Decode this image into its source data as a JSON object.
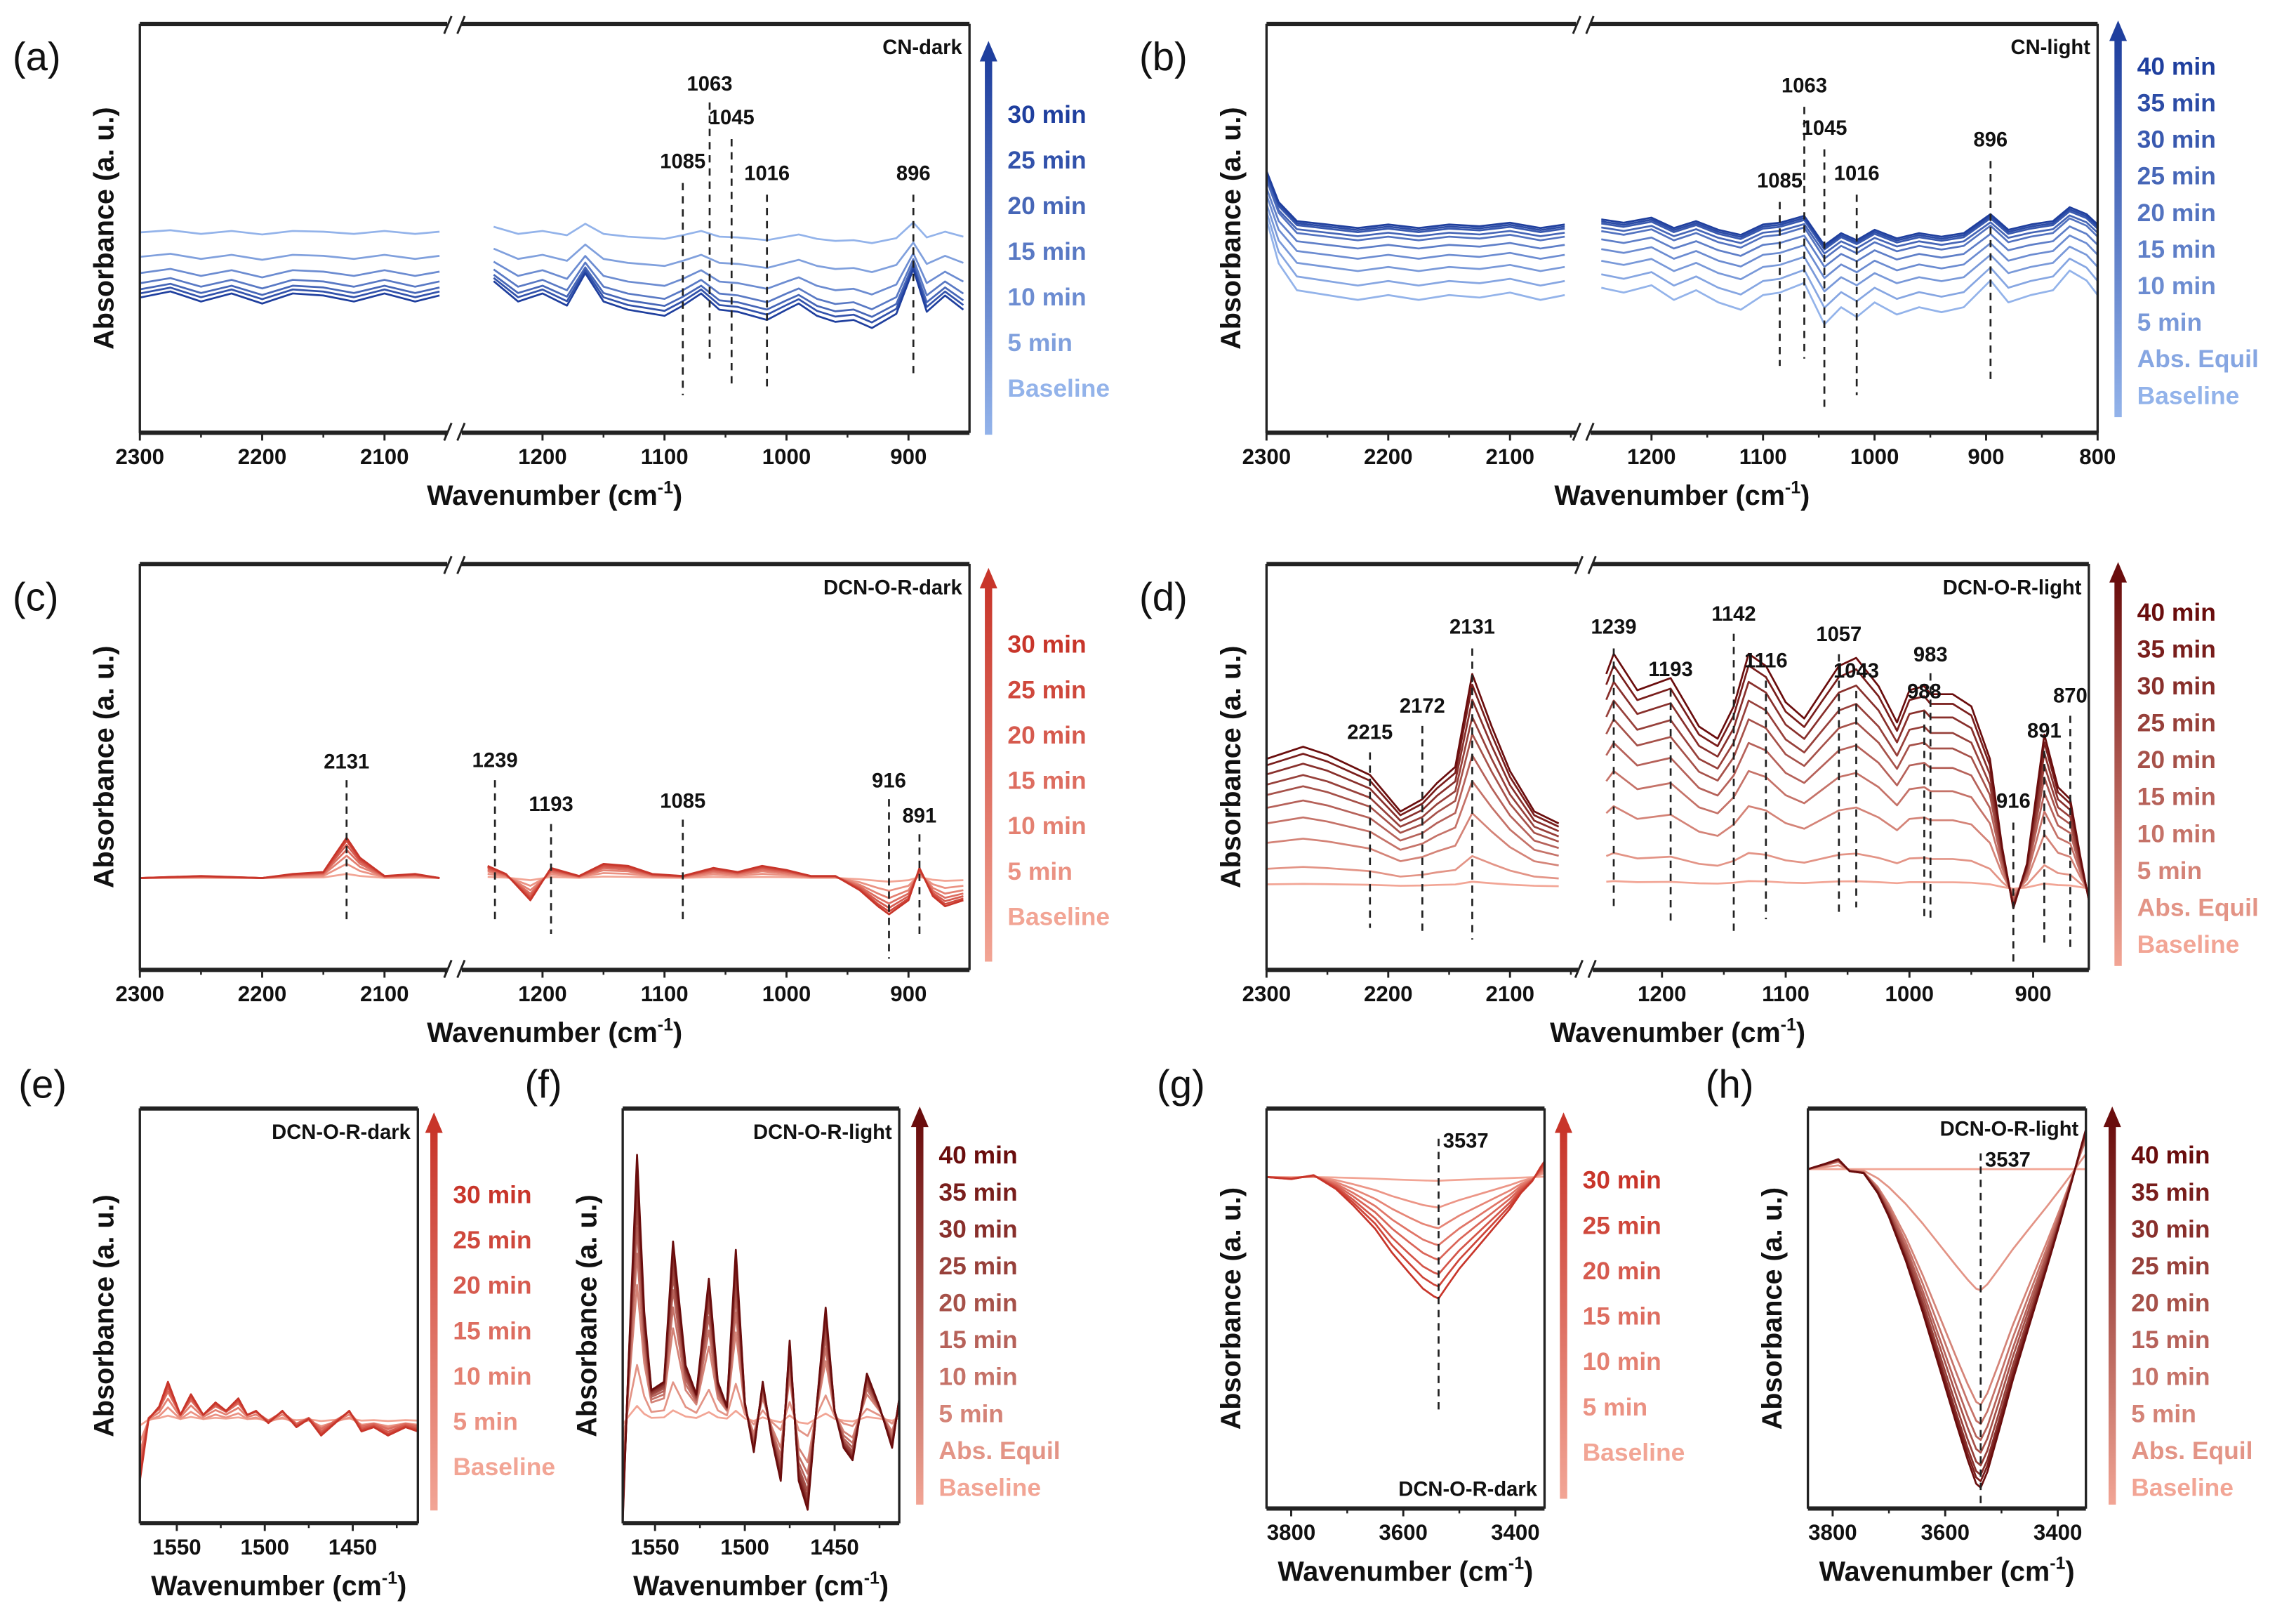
{
  "colors": {
    "blue_light": "#93b3ea",
    "blue_dark": "#1f3f9e",
    "red_light": "#f2a595",
    "red_mid": "#c8352a",
    "red_dark": "#6a0d0d"
  },
  "chart_data": [
    {
      "panel": "(a)",
      "type": "line",
      "title": "CN-dark",
      "xlabel": [
        "Wavenumber (cm",
        "-1",
        ")"
      ],
      "ylabel": "Absorbance (a. u.)",
      "x_axis_break": [
        2050,
        1265
      ],
      "xlim": [
        2300,
        850
      ],
      "ylim": [
        0,
        10
      ],
      "xticks": [
        2300,
        2200,
        2100,
        1200,
        1100,
        1000,
        900
      ],
      "x": [
        2300,
        2275,
        2250,
        2225,
        2200,
        2175,
        2150,
        2125,
        2100,
        2075,
        2055,
        1240,
        1220,
        1200,
        1180,
        1165,
        1150,
        1130,
        1100,
        1085,
        1070,
        1055,
        1040,
        1016,
        1000,
        990,
        975,
        960,
        945,
        930,
        910,
        896,
        885,
        870,
        855
      ],
      "profile": [
        0,
        0.15,
        -0.1,
        0.1,
        -0.15,
        0.1,
        0.05,
        -0.1,
        0.1,
        -0.1,
        0.05,
        0.4,
        -0.1,
        0.1,
        -0.2,
        0.6,
        -0.1,
        -0.3,
        -0.45,
        -0.2,
        0.1,
        -0.3,
        -0.35,
        -0.55,
        -0.3,
        -0.15,
        -0.45,
        -0.6,
        -0.55,
        -0.75,
        -0.4,
        0.7,
        -0.35,
        0.05,
        -0.3
      ],
      "series": [
        {
          "name": "Baseline",
          "offset": 4.9,
          "scale": 0.35
        },
        {
          "name": "5 min",
          "offset": 4.3,
          "scale": 0.5
        },
        {
          "name": "10 min",
          "offset": 3.9,
          "scale": 0.7
        },
        {
          "name": "15 min",
          "offset": 3.65,
          "scale": 0.85
        },
        {
          "name": "20 min",
          "offset": 3.5,
          "scale": 0.9
        },
        {
          "name": "25 min",
          "offset": 3.4,
          "scale": 0.95
        },
        {
          "name": "30 min",
          "offset": 3.3,
          "scale": 1.0
        }
      ],
      "peaks": [
        "1085",
        "1063",
        "1045",
        "1016",
        "896"
      ],
      "legend": [
        "30 min",
        "25 min",
        "20 min",
        "15 min",
        "10 min",
        "5 min",
        "Baseline"
      ]
    },
    {
      "panel": "(b)",
      "type": "line",
      "title": "CN-light",
      "xlabel": [
        "Wavenumber (cm",
        "-1",
        ")"
      ],
      "ylabel": "Absorbance (a. u.)",
      "x_axis_break": [
        2050,
        1250
      ],
      "xlim": [
        2300,
        800
      ],
      "ylim": [
        0,
        10
      ],
      "xticks": [
        2300,
        2200,
        2100,
        1200,
        1100,
        1000,
        900,
        800
      ],
      "x": [
        2300,
        2290,
        2275,
        2250,
        2225,
        2200,
        2175,
        2150,
        2125,
        2100,
        2075,
        2055,
        1245,
        1225,
        1200,
        1180,
        1160,
        1140,
        1120,
        1100,
        1085,
        1063,
        1045,
        1030,
        1016,
        1000,
        980,
        960,
        940,
        920,
        896,
        880,
        860,
        840,
        825,
        810,
        800
      ],
      "profile": [
        1.6,
        0.7,
        0.15,
        0.05,
        -0.05,
        0.05,
        -0.05,
        0.05,
        0,
        0.1,
        -0.05,
        0.05,
        0.2,
        0.1,
        0.25,
        -0.05,
        0.15,
        -0.1,
        -0.25,
        0.05,
        0.1,
        0.3,
        -0.55,
        -0.2,
        -0.4,
        -0.1,
        -0.35,
        -0.2,
        -0.3,
        -0.2,
        0.35,
        -0.1,
        0.05,
        0.15,
        0.55,
        0.35,
        0.05
      ],
      "series": [
        {
          "name": "Baseline",
          "offset": 3.3,
          "scale": 1.2
        },
        {
          "name": "Abs. Equil",
          "offset": 3.65,
          "scale": 1.1
        },
        {
          "name": "5 min",
          "offset": 4.0,
          "scale": 1.0
        },
        {
          "name": "10 min",
          "offset": 4.3,
          "scale": 0.95
        },
        {
          "name": "15 min",
          "offset": 4.55,
          "scale": 0.9
        },
        {
          "name": "20 min",
          "offset": 4.75,
          "scale": 0.9
        },
        {
          "name": "25 min",
          "offset": 4.85,
          "scale": 0.85
        },
        {
          "name": "30 min",
          "offset": 4.95,
          "scale": 0.85
        },
        {
          "name": "35 min",
          "offset": 5.0,
          "scale": 0.85
        },
        {
          "name": "40 min",
          "offset": 5.05,
          "scale": 0.85
        }
      ],
      "peaks": [
        "1085",
        "1063",
        "1045",
        "1016",
        "896"
      ],
      "legend": [
        "40 min",
        "35 min",
        "30 min",
        "25 min",
        "20 min",
        "15 min",
        "10 min",
        "5 min",
        "Abs. Equil",
        "Baseline"
      ]
    },
    {
      "panel": "(c)",
      "type": "line",
      "title": "DCN-O-R-dark",
      "xlabel": [
        "Wavenumber (cm",
        "-1",
        ")"
      ],
      "ylabel": "Absorbance (a. u.)",
      "x_axis_break": [
        2050,
        1265
      ],
      "xlim": [
        2300,
        850
      ],
      "ylim": [
        0,
        10
      ],
      "xticks": [
        2300,
        2200,
        2100,
        1200,
        1100,
        1000,
        900
      ],
      "x": [
        2300,
        2250,
        2200,
        2175,
        2150,
        2140,
        2131,
        2120,
        2100,
        2075,
        2055,
        1245,
        1230,
        1210,
        1193,
        1170,
        1150,
        1130,
        1110,
        1085,
        1060,
        1040,
        1020,
        1000,
        980,
        960,
        940,
        925,
        916,
        900,
        891,
        880,
        870,
        855
      ],
      "profile": [
        0,
        0.05,
        0,
        0.1,
        0.15,
        0.6,
        1.0,
        0.5,
        0.05,
        0.1,
        0,
        0.3,
        0.1,
        -0.55,
        0.25,
        0.05,
        0.35,
        0.3,
        0.1,
        0.05,
        0.25,
        0.15,
        0.3,
        0.2,
        0.05,
        0.05,
        -0.3,
        -0.7,
        -0.9,
        -0.55,
        0.25,
        -0.45,
        -0.7,
        -0.55
      ],
      "series": [
        {
          "name": "Baseline",
          "offset": 2.25,
          "scale": 0.1
        },
        {
          "name": "5 min",
          "offset": 2.25,
          "scale": 0.35
        },
        {
          "name": "10 min",
          "offset": 2.25,
          "scale": 0.55
        },
        {
          "name": "15 min",
          "offset": 2.25,
          "scale": 0.7
        },
        {
          "name": "20 min",
          "offset": 2.25,
          "scale": 0.82
        },
        {
          "name": "25 min",
          "offset": 2.25,
          "scale": 0.92
        },
        {
          "name": "30 min",
          "offset": 2.25,
          "scale": 1.0
        }
      ],
      "peaks": [
        "2131",
        "1239",
        "1193",
        "1085",
        "916",
        "891"
      ],
      "legend": [
        "30 min",
        "25 min",
        "20 min",
        "15 min",
        "10 min",
        "5 min",
        "Baseline"
      ]
    },
    {
      "panel": "(d)",
      "type": "line",
      "title": "DCN-O-R-light",
      "xlabel": [
        "Wavenumber (cm",
        "-1",
        ")"
      ],
      "ylabel": "Absorbance (a. u.)",
      "x_axis_break": [
        2050,
        1250
      ],
      "xlim": [
        2300,
        855
      ],
      "ylim": [
        0,
        10
      ],
      "xticks": [
        2300,
        2200,
        2100,
        1200,
        1100,
        1000,
        900
      ],
      "x": [
        2300,
        2270,
        2250,
        2215,
        2190,
        2172,
        2160,
        2145,
        2131,
        2115,
        2100,
        2080,
        2060,
        1245,
        1239,
        1220,
        1193,
        1170,
        1155,
        1142,
        1130,
        1116,
        1100,
        1085,
        1070,
        1057,
        1043,
        1025,
        1010,
        1000,
        988,
        983,
        965,
        950,
        935,
        925,
        916,
        905,
        891,
        880,
        870,
        862,
        855
      ],
      "profile": [
        3.2,
        3.5,
        3.3,
        2.8,
        1.9,
        2.2,
        2.6,
        3.0,
        5.3,
        4.0,
        2.9,
        1.9,
        1.6,
        5.3,
        5.8,
        4.9,
        5.2,
        4.0,
        3.7,
        4.5,
        5.8,
        5.5,
        4.6,
        4.2,
        4.9,
        5.5,
        5.7,
        5.0,
        4.1,
        4.9,
        5.0,
        4.8,
        4.8,
        4.5,
        3.2,
        1.0,
        -0.5,
        0.6,
        3.8,
        2.5,
        2.2,
        0.8,
        -0.3
      ],
      "series": [
        {
          "name": "Baseline",
          "offset": 2.0,
          "scale": 0.03
        },
        {
          "name": "Abs. Equil",
          "offset": 2.0,
          "scale": 0.15
        },
        {
          "name": "5 min",
          "offset": 2.0,
          "scale": 0.35
        },
        {
          "name": "10 min",
          "offset": 2.0,
          "scale": 0.5
        },
        {
          "name": "15 min",
          "offset": 2.0,
          "scale": 0.62
        },
        {
          "name": "20 min",
          "offset": 2.0,
          "scale": 0.72
        },
        {
          "name": "25 min",
          "offset": 2.0,
          "scale": 0.8
        },
        {
          "name": "30 min",
          "offset": 2.0,
          "scale": 0.88
        },
        {
          "name": "35 min",
          "offset": 2.0,
          "scale": 0.95
        },
        {
          "name": "40 min",
          "offset": 2.0,
          "scale": 1.0
        }
      ],
      "peaks": [
        "2215",
        "2172",
        "2131",
        "1239",
        "1193",
        "1142",
        "1116",
        "1057",
        "1043",
        "988",
        "983",
        "916",
        "891",
        "870"
      ],
      "legend": [
        "40 min",
        "35 min",
        "30 min",
        "25 min",
        "20 min",
        "15 min",
        "10 min",
        "5 min",
        "Abs. Equil",
        "Baseline"
      ]
    },
    {
      "panel": "(e)",
      "type": "line",
      "title": "DCN-O-R-dark",
      "xlabel": [
        "Wavenumber (cm",
        "-1",
        ")"
      ],
      "ylabel": "Absorbance (a. u.)",
      "xlim": [
        1571,
        1413
      ],
      "ylim": [
        0,
        10
      ],
      "xticks": [
        1550,
        1500,
        1450
      ],
      "x": [
        1571,
        1566,
        1560,
        1555,
        1548,
        1542,
        1535,
        1528,
        1522,
        1515,
        1510,
        1505,
        1498,
        1490,
        1482,
        1475,
        1468,
        1460,
        1452,
        1445,
        1438,
        1430,
        1420,
        1413
      ],
      "profile": [
        -1.6,
        -0.1,
        0.2,
        0.8,
        0.0,
        0.5,
        0.0,
        0.3,
        0.1,
        0.4,
        0.0,
        0.1,
        -0.2,
        0.1,
        -0.3,
        -0.1,
        -0.5,
        -0.2,
        0.1,
        -0.4,
        -0.3,
        -0.5,
        -0.3,
        -0.4
      ],
      "series": [
        {
          "name": "Baseline",
          "offset": 2.5,
          "scale": 0.1
        },
        {
          "name": "5 min",
          "offset": 2.5,
          "scale": 0.35
        },
        {
          "name": "10 min",
          "offset": 2.55,
          "scale": 0.55
        },
        {
          "name": "15 min",
          "offset": 2.6,
          "scale": 0.7
        },
        {
          "name": "20 min",
          "offset": 2.6,
          "scale": 0.82
        },
        {
          "name": "25 min",
          "offset": 2.6,
          "scale": 0.92
        },
        {
          "name": "30 min",
          "offset": 2.6,
          "scale": 1.0
        }
      ],
      "peaks": [],
      "legend": [
        "30 min",
        "25 min",
        "20 min",
        "15 min",
        "10 min",
        "5 min",
        "Baseline"
      ]
    },
    {
      "panel": "(f)",
      "type": "line",
      "title": "DCN-O-R-light",
      "xlabel": [
        "Wavenumber (cm",
        "-1",
        ")"
      ],
      "ylabel": "Absorbance (a. u.)",
      "xlim": [
        1568,
        1414
      ],
      "ylim": [
        0,
        10
      ],
      "xticks": [
        1550,
        1500,
        1450
      ],
      "x": [
        1568,
        1565,
        1560,
        1556,
        1552,
        1545,
        1540,
        1533,
        1527,
        1520,
        1515,
        1510,
        1505,
        1500,
        1495,
        1490,
        1485,
        1480,
        1475,
        1470,
        1465,
        1460,
        1455,
        1450,
        1445,
        1440,
        1432,
        1425,
        1418,
        1414
      ],
      "profile": [
        -2.6,
        1.0,
        6.3,
        2.5,
        0.6,
        0.8,
        4.2,
        1.2,
        0.5,
        3.3,
        0.8,
        0.2,
        4.0,
        0.3,
        -0.9,
        0.8,
        -0.6,
        -1.6,
        1.8,
        -1.6,
        -2.3,
        0.2,
        2.6,
        0.1,
        -0.8,
        -1.1,
        1.0,
        0.2,
        -0.8,
        0.4
      ],
      "series": [
        {
          "name": "Baseline",
          "offset": 2.5,
          "scale": 0.05
        },
        {
          "name": "Abs. Equil",
          "offset": 2.55,
          "scale": 0.2
        },
        {
          "name": "5 min",
          "offset": 2.6,
          "scale": 0.5
        },
        {
          "name": "10 min",
          "offset": 2.6,
          "scale": 0.62
        },
        {
          "name": "15 min",
          "offset": 2.6,
          "scale": 0.72
        },
        {
          "name": "20 min",
          "offset": 2.6,
          "scale": 0.8
        },
        {
          "name": "25 min",
          "offset": 2.6,
          "scale": 0.86
        },
        {
          "name": "30 min",
          "offset": 2.6,
          "scale": 0.92
        },
        {
          "name": "35 min",
          "offset": 2.6,
          "scale": 0.96
        },
        {
          "name": "40 min",
          "offset": 2.6,
          "scale": 1.0
        }
      ],
      "peaks": [],
      "legend": [
        "40 min",
        "35 min",
        "30 min",
        "25 min",
        "20 min",
        "15 min",
        "10 min",
        "5 min",
        "Abs. Equil",
        "Baseline"
      ]
    },
    {
      "panel": "(g)",
      "type": "line",
      "title": "DCN-O-R-dark",
      "xlabel": [
        "Wavenumber (cm",
        "-1",
        ")"
      ],
      "ylabel": "Absorbance (a. u.)",
      "xlim": [
        3844,
        3348
      ],
      "ylim": [
        0,
        10
      ],
      "xticks": [
        3800,
        3600,
        3400
      ],
      "x": [
        3844,
        3800,
        3760,
        3720,
        3690,
        3650,
        3620,
        3590,
        3565,
        3545,
        3537,
        3520,
        3500,
        3470,
        3440,
        3410,
        3390,
        3370,
        3355,
        3348
      ],
      "profile": [
        0,
        -0.05,
        0.05,
        -0.3,
        -0.7,
        -1.3,
        -1.9,
        -2.4,
        -2.8,
        -3.0,
        -3.05,
        -2.7,
        -2.3,
        -1.8,
        -1.3,
        -0.8,
        -0.4,
        -0.1,
        0.25,
        0.4
      ],
      "series": [
        {
          "name": "Baseline",
          "offset": 8.3,
          "scale": 0.03
        },
        {
          "name": "5 min",
          "offset": 8.3,
          "scale": 0.25
        },
        {
          "name": "10 min",
          "offset": 8.3,
          "scale": 0.42
        },
        {
          "name": "15 min",
          "offset": 8.3,
          "scale": 0.56
        },
        {
          "name": "20 min",
          "offset": 8.3,
          "scale": 0.68
        },
        {
          "name": "25 min",
          "offset": 8.3,
          "scale": 0.8
        },
        {
          "name": "30 min",
          "offset": 8.3,
          "scale": 0.9
        },
        {
          "name": "30 min",
          "offset": 8.3,
          "scale": 1.0
        }
      ],
      "peaks": [
        "3537"
      ],
      "legend": [
        "30 min",
        "25 min",
        "20 min",
        "15 min",
        "10 min",
        "5 min",
        "Baseline"
      ]
    },
    {
      "panel": "(h)",
      "type": "line",
      "title": "DCN-O-R-light",
      "xlabel": [
        "Wavenumber (cm",
        "-1",
        ")"
      ],
      "ylabel": "Absorbance (a. u.)",
      "xlim": [
        3844,
        3350
      ],
      "ylim": [
        0,
        10
      ],
      "xticks": [
        3800,
        3600,
        3400
      ],
      "x": [
        3844,
        3810,
        3790,
        3770,
        3745,
        3720,
        3700,
        3670,
        3640,
        3610,
        3580,
        3560,
        3545,
        3537,
        3525,
        3505,
        3480,
        3450,
        3420,
        3395,
        3375,
        3360,
        3350
      ],
      "profile": [
        0,
        0.15,
        0.25,
        -0.05,
        -0.1,
        -0.6,
        -1.2,
        -2.3,
        -3.6,
        -5.0,
        -6.4,
        -7.3,
        -7.9,
        -8.0,
        -7.6,
        -6.6,
        -5.3,
        -3.9,
        -2.5,
        -1.3,
        -0.3,
        0.5,
        1.0
      ],
      "series": [
        {
          "name": "Baseline",
          "offset": 8.5,
          "scale": 0.0
        },
        {
          "name": "Abs. Equil",
          "offset": 8.5,
          "scale": 0.38
        },
        {
          "name": "5 min",
          "offset": 8.5,
          "scale": 0.74
        },
        {
          "name": "10 min",
          "offset": 8.5,
          "scale": 0.8
        },
        {
          "name": "15 min",
          "offset": 8.5,
          "scale": 0.85
        },
        {
          "name": "20 min",
          "offset": 8.5,
          "scale": 0.89
        },
        {
          "name": "25 min",
          "offset": 8.5,
          "scale": 0.93
        },
        {
          "name": "30 min",
          "offset": 8.5,
          "scale": 0.96
        },
        {
          "name": "35 min",
          "offset": 8.5,
          "scale": 0.98
        },
        {
          "name": "40 min",
          "offset": 8.5,
          "scale": 1.0
        }
      ],
      "peaks": [
        "3537"
      ],
      "legend": [
        "40 min",
        "35 min",
        "30 min",
        "25 min",
        "20 min",
        "15 min",
        "10 min",
        "5 min",
        "Abs. Equil",
        "Baseline"
      ]
    }
  ]
}
